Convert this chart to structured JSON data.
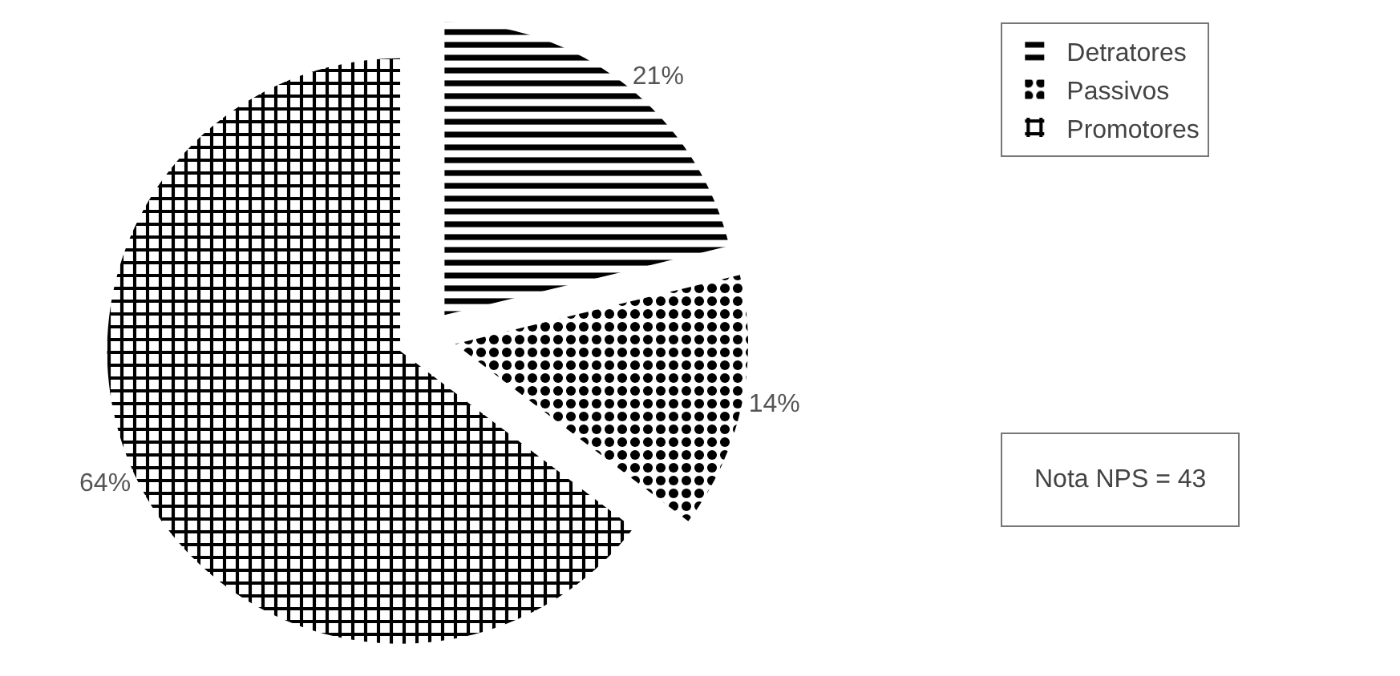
{
  "chart_data": {
    "type": "pie",
    "categories": [
      "Detratores",
      "Passivos",
      "Promotores"
    ],
    "values": [
      21,
      14,
      64
    ],
    "colors": [
      "#000000",
      "#000000",
      "#000000"
    ],
    "value_labels": [
      "21%",
      "14%",
      "64%"
    ],
    "legend": "top right",
    "annotations": [
      "Nota NPS = 43"
    ]
  }
}
